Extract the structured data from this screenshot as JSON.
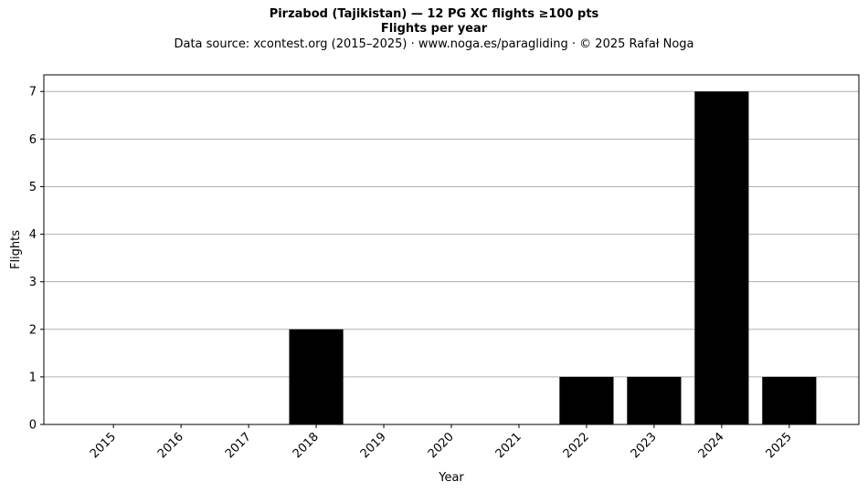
{
  "header": {
    "title": "Pirzabod (Tajikistan)  —  12 PG XC flights ≥100 pts",
    "subtitle": "Flights per year",
    "source": "Data source: xcontest.org (2015–2025)  ·  www.noga.es/paragliding  ·  © 2025 Rafał Noga"
  },
  "chart_data": {
    "type": "bar",
    "title": "Pirzabod (Tajikistan)  —  12 PG XC flights ≥100 pts",
    "subtitle": "Flights per year",
    "xlabel": "Year",
    "ylabel": "Flights",
    "categories": [
      "2015",
      "2016",
      "2017",
      "2018",
      "2019",
      "2020",
      "2021",
      "2022",
      "2023",
      "2024",
      "2025"
    ],
    "values": [
      0,
      0,
      0,
      2,
      0,
      0,
      0,
      1,
      1,
      7,
      1
    ],
    "ylim": [
      0,
      7.35
    ],
    "yticks": [
      0,
      1,
      2,
      3,
      4,
      5,
      6,
      7
    ],
    "grid": "horizontal",
    "bar_color": "#000000",
    "grid_color": "#b0b0b0"
  }
}
